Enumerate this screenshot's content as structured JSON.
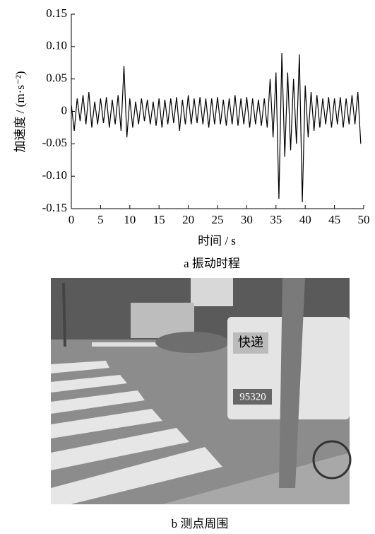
{
  "chart_data": {
    "type": "line",
    "ylabel": "加速度 / (m·s⁻²)",
    "xlabel": "时间 / s",
    "caption": "a  振动时程",
    "color": "#000000",
    "x": [
      0,
      0.5,
      1,
      1.5,
      2,
      2.5,
      3,
      3.5,
      4,
      4.5,
      5,
      5.5,
      6,
      6.5,
      7,
      7.5,
      8,
      8.5,
      9,
      9.5,
      10,
      10.5,
      11,
      11.5,
      12,
      12.5,
      13,
      13.5,
      14,
      14.5,
      15,
      15.5,
      16,
      16.5,
      17,
      17.5,
      18,
      18.5,
      19,
      19.5,
      20,
      20.5,
      21,
      21.5,
      22,
      22.5,
      23,
      23.5,
      24,
      24.5,
      25,
      25.5,
      26,
      26.5,
      27,
      27.5,
      28,
      28.5,
      29,
      29.5,
      30,
      30.5,
      31,
      31.5,
      32,
      32.5,
      33,
      33.5,
      34,
      34.5,
      35,
      35.5,
      36,
      36.5,
      37,
      37.5,
      38,
      38.5,
      39,
      39.5,
      40,
      40.5,
      41,
      41.5,
      42,
      42.5,
      43,
      43.5,
      44,
      44.5,
      45,
      45.5,
      46,
      46.5,
      47,
      47.5,
      48,
      48.5,
      49,
      49.5
    ],
    "values": [
      0.01,
      -0.03,
      0.02,
      -0.015,
      0.025,
      -0.02,
      0.03,
      -0.025,
      0.015,
      -0.02,
      0.02,
      -0.018,
      0.022,
      -0.025,
      0.018,
      -0.02,
      0.025,
      -0.03,
      0.07,
      -0.04,
      0.02,
      -0.025,
      0.015,
      -0.02,
      0.02,
      -0.015,
      0.018,
      -0.02,
      0.015,
      -0.022,
      0.02,
      -0.025,
      0.018,
      -0.02,
      0.02,
      -0.018,
      0.022,
      -0.03,
      0.018,
      -0.02,
      0.025,
      -0.02,
      0.02,
      -0.018,
      0.022,
      -0.02,
      0.02,
      -0.025,
      0.02,
      -0.02,
      0.022,
      -0.02,
      0.018,
      -0.022,
      0.02,
      -0.02,
      0.025,
      -0.022,
      0.02,
      -0.02,
      0.022,
      -0.025,
      0.02,
      -0.02,
      0.018,
      -0.022,
      0.02,
      -0.025,
      0.05,
      -0.04,
      0.06,
      -0.135,
      0.09,
      -0.07,
      0.06,
      -0.06,
      0.05,
      -0.05,
      0.088,
      -0.14,
      0.04,
      -0.04,
      0.03,
      -0.03,
      0.025,
      -0.025,
      0.02,
      -0.02,
      0.022,
      -0.025,
      0.02,
      -0.02,
      0.022,
      -0.025,
      0.02,
      -0.02,
      0.025,
      -0.02,
      0.03,
      -0.05
    ],
    "xlim": [
      0,
      50
    ],
    "xticks": [
      0,
      5,
      10,
      15,
      20,
      25,
      30,
      35,
      40,
      45,
      50
    ],
    "ylim": [
      -0.15,
      0.15
    ],
    "yticks": [
      -0.15,
      {
        "value": -0.1,
        "label": "-0.10"
      },
      -0.05,
      0,
      0.05,
      {
        "value": 0.1,
        "label": "0.10"
      },
      0.15
    ]
  },
  "photo": {
    "caption": "b  测点周围",
    "texts": [
      "快递",
      "95320"
    ]
  }
}
